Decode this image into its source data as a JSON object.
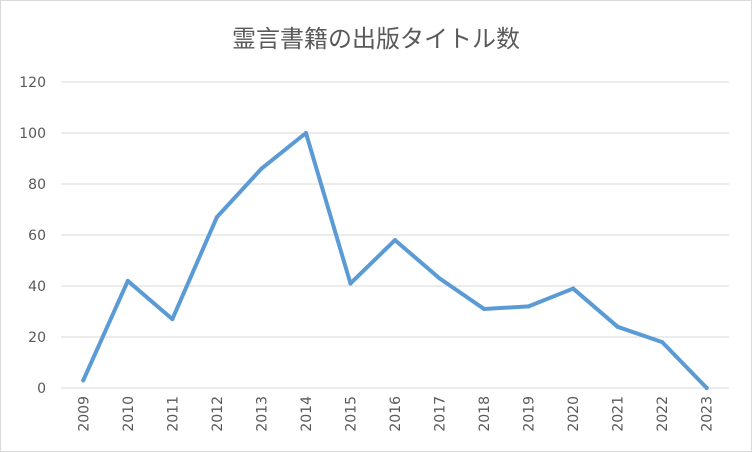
{
  "chart_data": {
    "type": "line",
    "title": "霊言書籍の出版タイトル数",
    "xlabel": "",
    "ylabel": "",
    "categories": [
      "2009",
      "2010",
      "2011",
      "2012",
      "2013",
      "2014",
      "2015",
      "2016",
      "2017",
      "2018",
      "2019",
      "2020",
      "2021",
      "2022",
      "2023"
    ],
    "series": [
      {
        "values": [
          3,
          42,
          27,
          67,
          86,
          100,
          41,
          58,
          43,
          31,
          32,
          39,
          24,
          18,
          0
        ]
      }
    ],
    "ylim": [
      0,
      120
    ],
    "yticks": [
      "0",
      "20",
      "40",
      "60",
      "80",
      "100",
      "120"
    ],
    "grid": true,
    "legend": "none",
    "colors": {
      "line": "#5b9bd5",
      "grid": "#d9d9d9",
      "text": "#595959"
    }
  }
}
